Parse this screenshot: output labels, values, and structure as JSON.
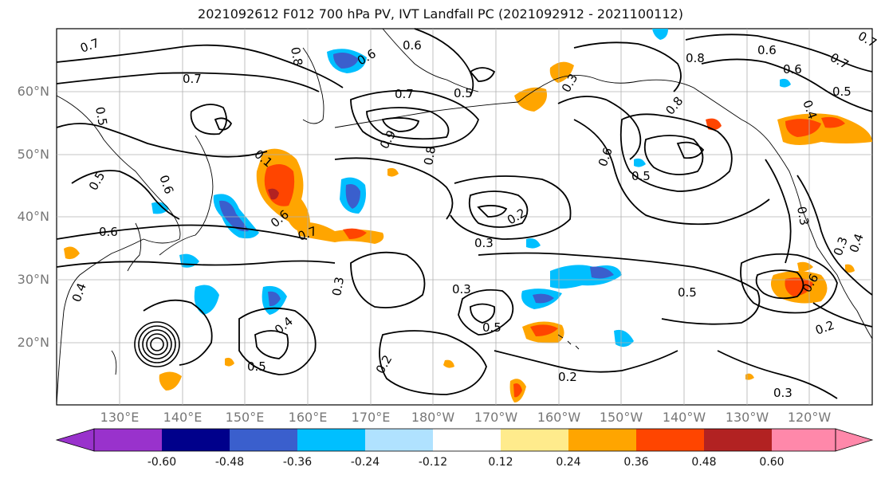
{
  "title": "2021092612 F012 700 hPa PV, IVT Landfall PC (2021092912 - 2021100112)",
  "lat_labels": [
    "60°N",
    "50°N",
    "40°N",
    "30°N",
    "20°N"
  ],
  "lon_labels": [
    "130°E",
    "140°E",
    "150°E",
    "160°E",
    "170°E",
    "180°W",
    "170°W",
    "160°W",
    "150°W",
    "140°W",
    "130°W",
    "120°W"
  ],
  "colorbar": {
    "colors": [
      "#9932cc",
      "#00008b",
      "#3a5fcd",
      "#00bfff",
      "#b0e2ff",
      "#ffffff",
      "#ffeb8c",
      "#ffa500",
      "#ff4500",
      "#b22222",
      "#ff88aa"
    ],
    "tick_labels": [
      "-0.60",
      "-0.48",
      "-0.36",
      "-0.24",
      "-0.12",
      "0.12",
      "0.24",
      "0.36",
      "0.48",
      "0.60"
    ]
  },
  "contour_labels": [
    "0.7",
    "0.6",
    "0.8",
    "0.7",
    "0.6",
    "0.5",
    "0.4",
    "0.3",
    "0.8",
    "0.6",
    "0.7",
    "0.6",
    "0.5",
    "0.1",
    "0.8",
    "0.6",
    "0.5",
    "0.3",
    "0.6",
    "0.6",
    "0.7",
    "0.5",
    "0.2",
    "0.3",
    "0.3",
    "0.5",
    "0.4",
    "0.3",
    "0.5",
    "0.2",
    "0.5",
    "0.2",
    "0.3",
    "0.4",
    "0.6",
    "0.3",
    "0.2",
    "0.4",
    "0.7",
    "0.7",
    "0.8",
    "0.9",
    "0.6",
    "0.5"
  ]
}
